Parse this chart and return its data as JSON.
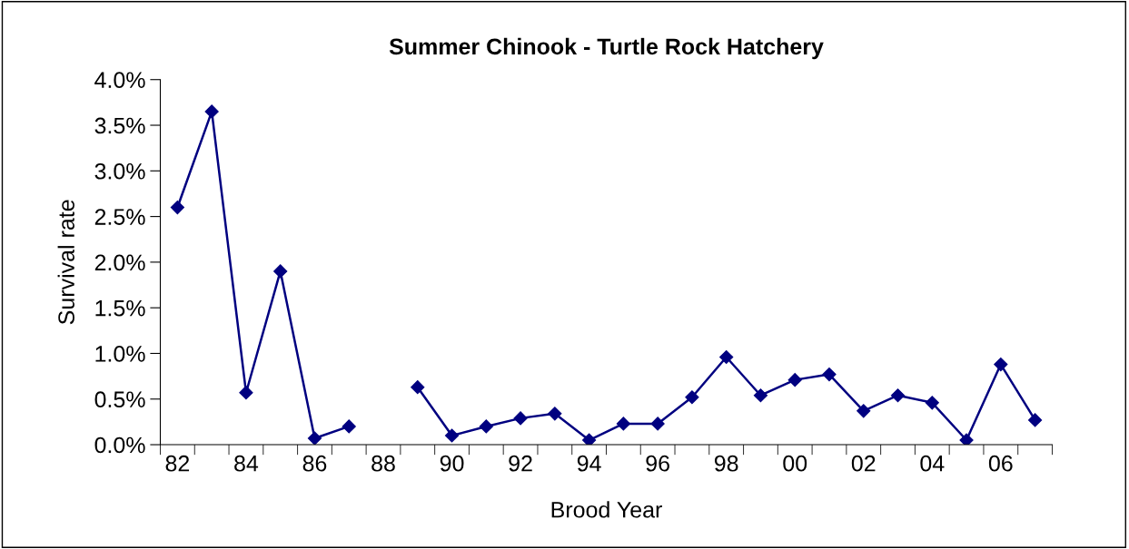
{
  "chart_data": {
    "type": "line",
    "title": "Summer Chinook - Turtle Rock Hatchery",
    "xlabel": "Brood Year",
    "ylabel": "Survival rate",
    "categories": [
      "82",
      null,
      "84",
      null,
      "86",
      null,
      "88",
      null,
      "90",
      null,
      "92",
      null,
      "94",
      null,
      "96",
      null,
      "98",
      null,
      "00",
      null,
      "02",
      null,
      "04",
      null,
      "06",
      null
    ],
    "series": [
      {
        "color": "#000080",
        "values": [
          2.6,
          3.65,
          0.57,
          1.9,
          0.07,
          0.2,
          null,
          0.63,
          0.1,
          0.2,
          0.29,
          0.34,
          0.05,
          0.23,
          0.23,
          0.52,
          0.96,
          0.54,
          0.71,
          0.77,
          0.37,
          0.54,
          0.46,
          0.05,
          0.88,
          0.27
        ]
      }
    ],
    "ylim": [
      0,
      4
    ],
    "yticks": [
      {
        "value": 0,
        "label": "0.0%"
      },
      {
        "value": 0.5,
        "label": "0.5%"
      },
      {
        "value": 1,
        "label": "1.0%"
      },
      {
        "value": 1.5,
        "label": "1.5%"
      },
      {
        "value": 2,
        "label": "2.0%"
      },
      {
        "value": 2.5,
        "label": "2.5%"
      },
      {
        "value": 3,
        "label": "3.0%"
      },
      {
        "value": 3.5,
        "label": "3.5%"
      },
      {
        "value": 4,
        "label": "4.0%"
      }
    ],
    "marker": "diamond",
    "line_style": "solid",
    "grid": false
  }
}
